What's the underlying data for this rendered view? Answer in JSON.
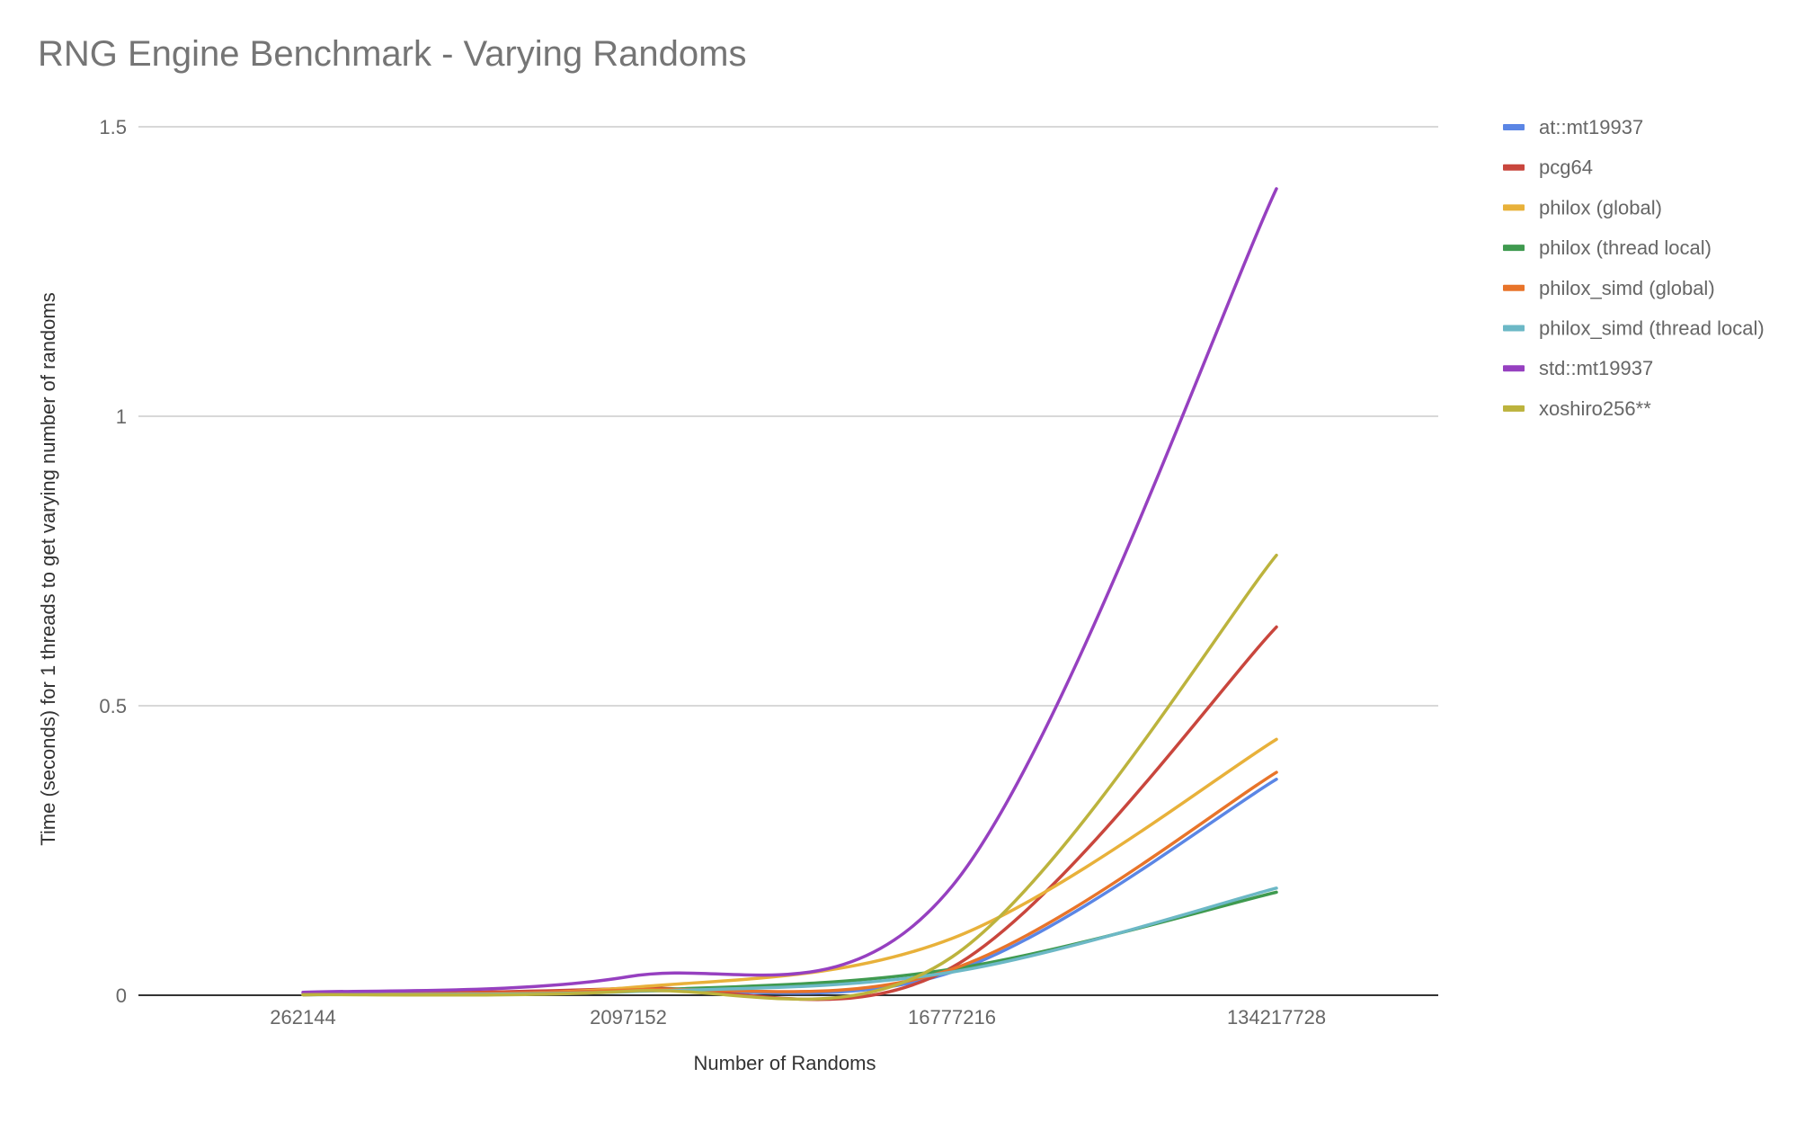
{
  "chart_data": {
    "type": "line",
    "title": "RNG Engine Benchmark - Varying Randoms",
    "xlabel": "Number of Randoms",
    "ylabel": "Time (seconds) for 1 threads to get varying number of randoms",
    "categories": [
      "262144",
      "2097152",
      "16777216",
      "134217728"
    ],
    "ylim": [
      0,
      1.5
    ],
    "yticks": [
      "0",
      "0.5",
      "1",
      "1.5"
    ],
    "grid": true,
    "legend_position": "right",
    "series": [
      {
        "name": "at::mt19937",
        "color": "#5b86e5",
        "values": [
          0.001,
          0.008,
          0.04,
          0.373
        ]
      },
      {
        "name": "pcg64",
        "color": "#c9463d",
        "values": [
          0.001,
          0.012,
          0.048,
          0.636
        ]
      },
      {
        "name": "philox (global)",
        "color": "#e8b13a",
        "values": [
          0.001,
          0.013,
          0.098,
          0.442
        ]
      },
      {
        "name": "philox (thread local)",
        "color": "#3f9a4f",
        "values": [
          0.001,
          0.008,
          0.045,
          0.178
        ]
      },
      {
        "name": "philox_simd (global)",
        "color": "#e8742a",
        "values": [
          0.001,
          0.009,
          0.045,
          0.385
        ]
      },
      {
        "name": "philox_simd (thread local)",
        "color": "#6cb8c6",
        "values": [
          0.001,
          0.006,
          0.04,
          0.185
        ]
      },
      {
        "name": "std::mt19937",
        "color": "#9640c0",
        "values": [
          0.005,
          0.032,
          0.188,
          1.393
        ]
      },
      {
        "name": "xoshiro256**",
        "color": "#bcb33d",
        "values": [
          0.001,
          0.007,
          0.066,
          0.76
        ]
      }
    ]
  }
}
